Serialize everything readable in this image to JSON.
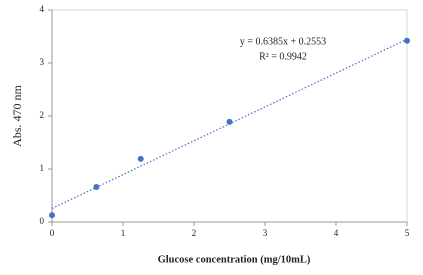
{
  "chart_data": {
    "type": "scatter",
    "x_label": "Glucose concentration  (mg/10mL)",
    "y_label": "Abs. 470 nm",
    "annotations": [
      "y = 0.6385x  + 0.2553",
      "R² = 0.9942"
    ],
    "x": [
      0,
      0.625,
      1.25,
      2.5,
      5
    ],
    "series": [
      {
        "name": "Abs",
        "color": "#4472c4",
        "values": [
          0.13,
          0.66,
          1.19,
          1.89,
          3.42
        ]
      }
    ],
    "trendline": {
      "slope": 0.6385,
      "intercept": 0.2553,
      "color": "#4472c4"
    },
    "xlim": [
      0,
      5
    ],
    "xticks": [
      0,
      1,
      2,
      3,
      4,
      5
    ],
    "ylim": [
      0,
      4
    ],
    "yticks": [
      0,
      1,
      2,
      3,
      4
    ],
    "grid": false
  }
}
